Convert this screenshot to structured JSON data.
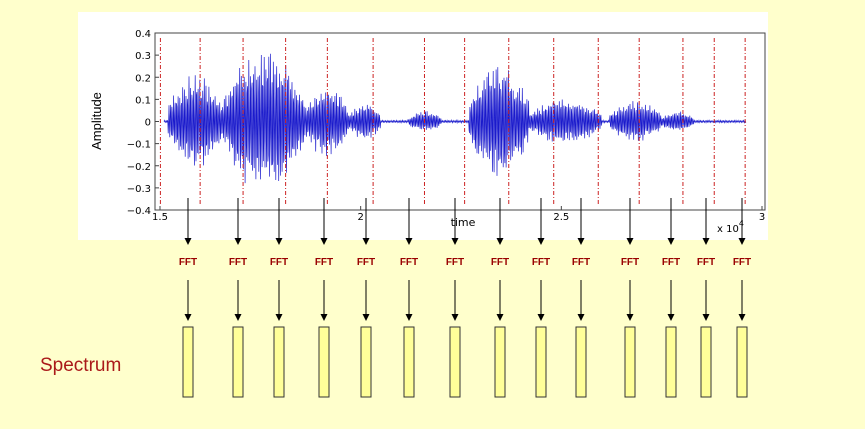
{
  "plot": {
    "ylabel": "Amplitude",
    "xlabel": "time",
    "x_multiplier": "x 10",
    "x_exponent": "4",
    "yticks": [
      "0.4",
      "0.3",
      "0.2",
      "0.1",
      "0",
      "−0.1",
      "−0.2",
      "−0.3",
      "−0.4"
    ],
    "xticks": [
      "1.5",
      "2",
      "2.5",
      "3"
    ]
  },
  "chart_data": {
    "type": "line",
    "ylabel": "Amplitude",
    "xlabel": "time",
    "xlim": [
      1.5,
      3
    ],
    "ylim": [
      -0.4,
      0.4
    ],
    "x_scale_note": "x 10^4",
    "frame_boundaries": [
      1.501,
      1.6,
      1.707,
      1.813,
      1.917,
      2.031,
      2.159,
      2.259,
      2.369,
      2.481,
      2.592,
      2.694,
      2.803,
      2.881,
      2.958
    ]
  },
  "fft": {
    "label": "FFT",
    "count": 14
  },
  "spectrum": {
    "label": "Spectrum"
  },
  "colors": {
    "background": "#ffffcc",
    "signal": "#1a1acc",
    "frame_line": "#cc2222",
    "fft_text": "#990000",
    "box_fill": "#ffff99"
  }
}
